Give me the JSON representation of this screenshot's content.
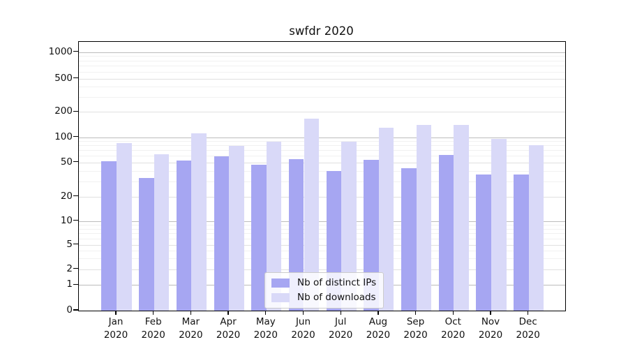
{
  "chart_data": {
    "type": "bar",
    "title": "swfdr 2020",
    "categories": [
      "Jan 2020",
      "Feb 2020",
      "Mar 2020",
      "Apr 2020",
      "May 2020",
      "Jun 2020",
      "Jul 2020",
      "Aug 2020",
      "Sep 2020",
      "Oct 2020",
      "Nov 2020",
      "Dec 2020"
    ],
    "series": [
      {
        "name": "Nb of distinct IPs",
        "color": "#a6a6f2",
        "values": [
          52,
          33,
          53,
          59,
          47,
          55,
          40,
          54,
          43,
          62,
          36,
          36
        ]
      },
      {
        "name": "Nb of downloads",
        "color": "#d9d9f8",
        "values": [
          85,
          63,
          111,
          79,
          89,
          165,
          88,
          130,
          140,
          140,
          96,
          80
        ]
      }
    ],
    "y_scale": "symlog",
    "y_ticks": [
      "1000",
      "500",
      "200",
      "100",
      "50",
      "20",
      "10",
      "5",
      "2",
      "1",
      "0"
    ],
    "ylim": [
      0,
      1400
    ],
    "grid": true,
    "legend_position": "lower center inside",
    "colors": {
      "major_grid": "#bcbcbc",
      "mid_grid": "#e0e0e0",
      "minor_grid": "#f1f1f1",
      "frame": "#000000"
    }
  }
}
